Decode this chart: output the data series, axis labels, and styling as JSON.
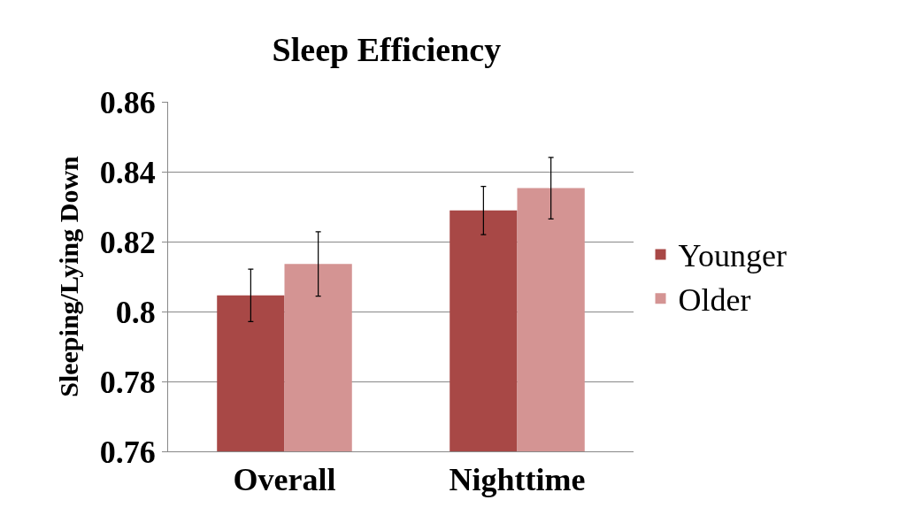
{
  "chart_data": {
    "type": "bar",
    "title": "Sleep Efficiency",
    "ylabel": "Sleeping/Lying Down",
    "categories": [
      "Overall",
      "Nighttime"
    ],
    "series": [
      {
        "name": "Younger",
        "color": "#a84846",
        "values": [
          0.8046,
          0.8289
        ],
        "errors": [
          0.0075,
          0.0069
        ]
      },
      {
        "name": "Older",
        "color": "#d49493",
        "values": [
          0.8136,
          0.8353
        ],
        "errors": [
          0.0092,
          0.0088
        ]
      }
    ],
    "ylim": [
      0.76,
      0.86
    ],
    "yticks": [
      {
        "value": 0.76,
        "label": "0.76"
      },
      {
        "value": 0.78,
        "label": "0.78"
      },
      {
        "value": 0.8,
        "label": "0.8"
      },
      {
        "value": 0.82,
        "label": "0.82"
      },
      {
        "value": 0.84,
        "label": "0.84"
      },
      {
        "value": 0.86,
        "label": "0.86"
      }
    ],
    "grid": "y",
    "legend": "right"
  }
}
